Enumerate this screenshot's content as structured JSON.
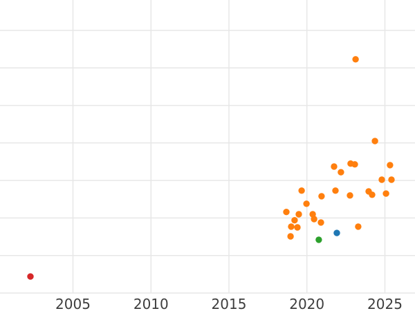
{
  "chart_data": {
    "type": "scatter",
    "title": "",
    "xlabel": "",
    "ylabel": "",
    "x_ticks": [
      2005,
      2010,
      2015,
      2020,
      2025
    ],
    "x_range": [
      2000.32,
      2026.93
    ],
    "y_range_units": [
      0,
      7.81
    ],
    "y_gridline_units": [
      0,
      1,
      2,
      3,
      4,
      5,
      6,
      7
    ],
    "y_axis_labels_visible": false,
    "grid": true,
    "legend_position": "none",
    "marker_radius_px": 4.7,
    "colors": {
      "background": "#ffffff",
      "grid": "#e7e7e7",
      "tick_label": "#3d3d3d",
      "orange": "#ff7f0e",
      "blue": "#1f77b4",
      "green": "#2ca02c",
      "red": "#d62728"
    },
    "series": [
      {
        "name": "series-orange",
        "color": "#ff7f0e",
        "points": [
          [
            2023.12,
            6.23
          ],
          [
            2024.36,
            4.05
          ],
          [
            2022.8,
            3.45
          ],
          [
            2023.07,
            3.43
          ],
          [
            2025.33,
            3.41
          ],
          [
            2021.74,
            3.37
          ],
          [
            2022.18,
            3.22
          ],
          [
            2024.8,
            3.02
          ],
          [
            2025.42,
            3.02
          ],
          [
            2019.66,
            2.73
          ],
          [
            2021.83,
            2.73
          ],
          [
            2023.96,
            2.71
          ],
          [
            2025.07,
            2.65
          ],
          [
            2024.18,
            2.62
          ],
          [
            2022.76,
            2.6
          ],
          [
            2020.94,
            2.58
          ],
          [
            2019.97,
            2.38
          ],
          [
            2018.68,
            2.16
          ],
          [
            2019.48,
            2.1
          ],
          [
            2020.37,
            2.1
          ],
          [
            2020.46,
            1.97
          ],
          [
            2019.21,
            1.94
          ],
          [
            2020.9,
            1.88
          ],
          [
            2018.99,
            1.77
          ],
          [
            2023.29,
            1.77
          ],
          [
            2019.39,
            1.75
          ],
          [
            2018.95,
            1.51
          ]
        ]
      },
      {
        "name": "series-blue",
        "color": "#1f77b4",
        "points": [
          [
            2021.92,
            1.6
          ]
        ]
      },
      {
        "name": "series-green",
        "color": "#2ca02c",
        "points": [
          [
            2020.76,
            1.42
          ]
        ]
      },
      {
        "name": "series-red",
        "color": "#d62728",
        "points": [
          [
            2002.27,
            0.44
          ]
        ]
      }
    ],
    "note": "y-axis tick labels are cropped out of the visible frame; y values are expressed in gridline units above the bottom visible gridline"
  }
}
